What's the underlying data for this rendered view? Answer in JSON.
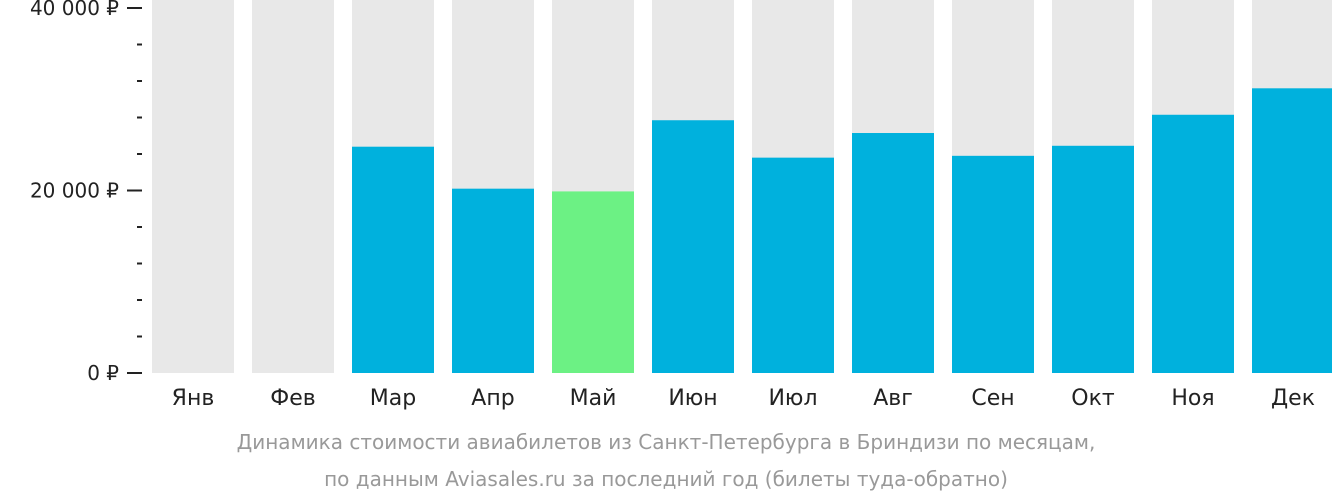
{
  "chart_data": {
    "type": "bar",
    "categories": [
      "Янв",
      "Фев",
      "Мар",
      "Апр",
      "Май",
      "Июн",
      "Июл",
      "Авг",
      "Сен",
      "Окт",
      "Ноя",
      "Дек"
    ],
    "values": [
      null,
      null,
      24800,
      20200,
      19900,
      27700,
      23600,
      26300,
      23800,
      24900,
      28300,
      31200
    ],
    "highlight_index": 4,
    "ylim": [
      0,
      40000
    ],
    "yticks": [
      {
        "value": 0,
        "label": "0 ₽"
      },
      {
        "value": 20000,
        "label": "20 000 ₽"
      },
      {
        "value": 40000,
        "label": "40 000 ₽"
      }
    ],
    "minor_tick_step": 4000,
    "grid": false,
    "colors": {
      "bar": "#00b1dd",
      "highlight": "#6cf184",
      "background_bar": "#e8e8e8",
      "axis": "#222222"
    }
  },
  "caption": {
    "line1": "Динамика стоимости авиабилетов из Санкт-Петербурга в Бриндизи по месяцам,",
    "line2": "по данным Aviasales.ru за последний год (билеты туда-обратно)"
  }
}
